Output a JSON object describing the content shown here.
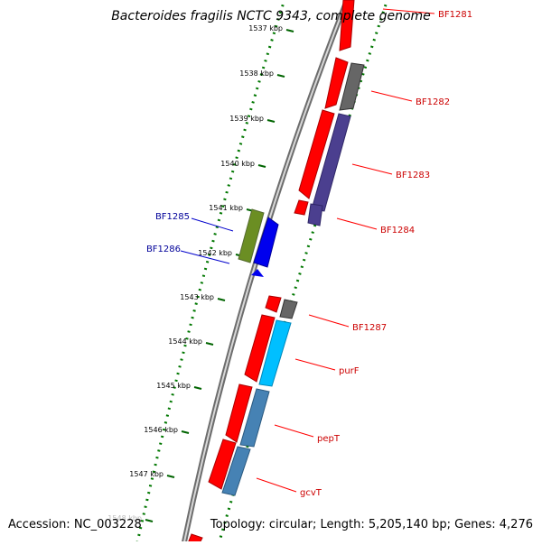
{
  "title": "Bacteroides fragilis NCTC 9343, complete genome",
  "footer": {
    "accession": "Accession: NC_003228",
    "summary": "Topology: circular; Length: 5,205,140 bp; Genes: 4,276"
  },
  "ticks": [
    {
      "label": "1537 kbp"
    },
    {
      "label": "1538 kbp"
    },
    {
      "label": "1539 kbp"
    },
    {
      "label": "1540 kbp"
    },
    {
      "label": "1541 kbp"
    },
    {
      "label": "1542 kbp"
    },
    {
      "label": "1543 kbp"
    },
    {
      "label": "1544 kbp"
    },
    {
      "label": "1545 kbp"
    },
    {
      "label": "1546 kbp"
    },
    {
      "label": "1547 kbp"
    },
    {
      "label": "1548 kbp"
    }
  ],
  "genes_forward": [
    {
      "label": "BF1281"
    },
    {
      "label": "BF1282"
    },
    {
      "label": "BF1283"
    },
    {
      "label": "BF1284"
    },
    {
      "label": "BF1287"
    },
    {
      "label": "purF"
    },
    {
      "label": "pepT"
    },
    {
      "label": "gcvT"
    }
  ],
  "genes_reverse": [
    {
      "label": "BF1285"
    },
    {
      "label": "BF1286"
    }
  ],
  "colors": {
    "forward_label": "#cc0000",
    "reverse_label": "#000099",
    "cds": "#ff0000",
    "grey_gene": "#666666",
    "purple_gene": "#4b3f8f",
    "green_gene": "#6b8e23",
    "blue_gene": "#0000ff",
    "cyan_gene": "#00bfff",
    "steel_gene": "#4682b4",
    "tick": "#006400",
    "backbone": "#808080"
  }
}
